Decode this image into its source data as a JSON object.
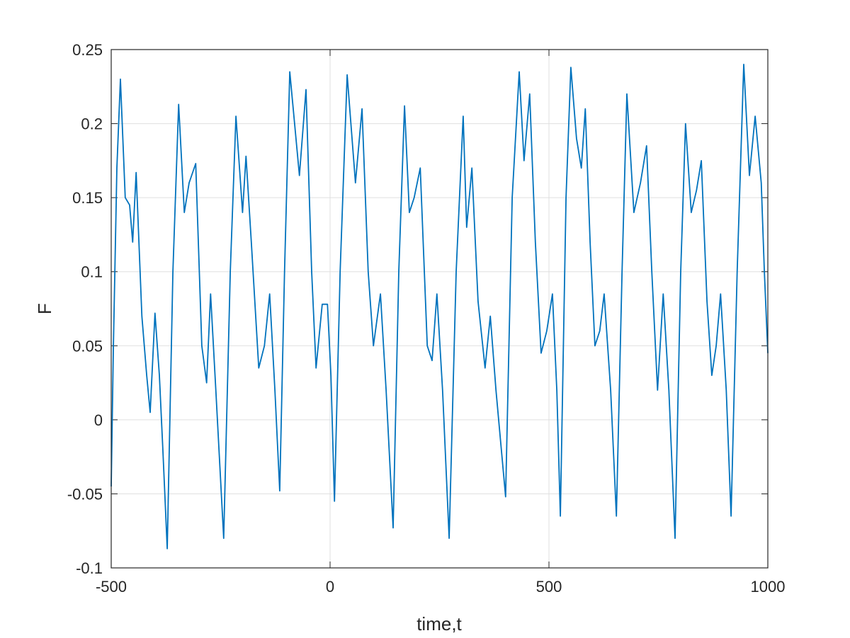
{
  "chart_data": {
    "type": "line",
    "xlabel": "time,t",
    "ylabel": "F",
    "x": [
      -500,
      -495,
      -487,
      -479,
      -468,
      -458,
      -451,
      -443,
      -430,
      -419,
      -411,
      -400,
      -390,
      -382,
      -372,
      -359,
      -346,
      -333,
      -322,
      -307,
      -293,
      -282,
      -273,
      -261,
      -243,
      -228,
      -215,
      -200,
      -192,
      -180,
      -163,
      -150,
      -138,
      -126,
      -115,
      -104,
      -92,
      -81,
      -70,
      -55,
      -42,
      -32,
      -18,
      -6,
      2,
      10,
      23,
      39,
      58,
      73,
      87,
      99,
      115,
      128,
      144,
      157,
      170,
      181,
      192,
      206,
      222,
      233,
      244,
      257,
      272,
      288,
      304,
      312,
      324,
      338,
      354,
      366,
      379,
      401,
      416,
      432,
      443,
      456,
      469,
      482,
      495,
      508,
      518,
      526,
      539,
      550,
      563,
      574,
      583,
      594,
      605,
      616,
      626,
      641,
      654,
      667,
      678,
      694,
      709,
      723,
      735,
      748,
      761,
      774,
      788,
      801,
      812,
      825,
      837,
      848,
      861,
      872,
      882,
      892,
      905,
      916,
      930,
      945,
      958,
      971,
      985,
      992,
      1000
    ],
    "series": [
      {
        "color": "#0072bd",
        "values": [
          -0.045,
          0.05,
          0.17,
          0.23,
          0.15,
          0.145,
          0.12,
          0.167,
          0.07,
          0.03,
          0.005,
          0.072,
          0.03,
          -0.02,
          -0.087,
          0.1,
          0.213,
          0.14,
          0.16,
          0.173,
          0.05,
          0.025,
          0.085,
          0.02,
          -0.08,
          0.1,
          0.205,
          0.14,
          0.178,
          0.12,
          0.035,
          0.05,
          0.085,
          0.02,
          -0.048,
          0.1,
          0.235,
          0.2,
          0.165,
          0.223,
          0.1,
          0.035,
          0.078,
          0.078,
          0.03,
          -0.055,
          0.1,
          0.233,
          0.16,
          0.21,
          0.1,
          0.05,
          0.085,
          0.02,
          -0.073,
          0.1,
          0.212,
          0.14,
          0.15,
          0.17,
          0.05,
          0.04,
          0.085,
          0.02,
          -0.08,
          0.1,
          0.205,
          0.13,
          0.17,
          0.08,
          0.035,
          0.07,
          0.02,
          -0.052,
          0.15,
          0.235,
          0.175,
          0.22,
          0.12,
          0.045,
          0.06,
          0.085,
          0.02,
          -0.065,
          0.15,
          0.238,
          0.19,
          0.17,
          0.21,
          0.12,
          0.05,
          0.06,
          0.085,
          0.02,
          -0.065,
          0.1,
          0.22,
          0.14,
          0.16,
          0.185,
          0.1,
          0.02,
          0.085,
          0.02,
          -0.08,
          0.1,
          0.2,
          0.14,
          0.155,
          0.175,
          0.08,
          0.03,
          0.05,
          0.085,
          0.02,
          -0.065,
          0.1,
          0.24,
          0.165,
          0.205,
          0.16,
          0.1,
          0.045
        ]
      }
    ],
    "xlim": [
      -500,
      1000
    ],
    "xticks": [
      -500,
      0,
      500,
      1000
    ],
    "ylim": [
      -0.1,
      0.25
    ],
    "yticks": [
      -0.1,
      -0.05,
      0,
      0.05,
      0.1,
      0.15,
      0.2,
      0.25
    ],
    "grid": true
  }
}
